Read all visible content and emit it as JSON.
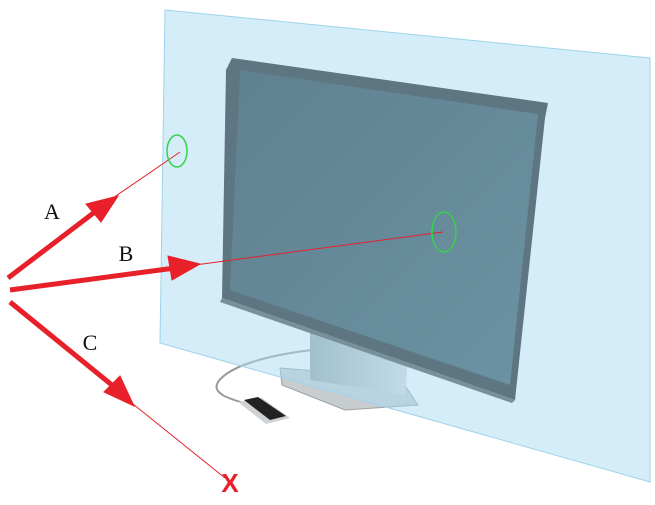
{
  "labels": {
    "a": "A",
    "b": "B",
    "c": "C",
    "miss": "X"
  }
}
